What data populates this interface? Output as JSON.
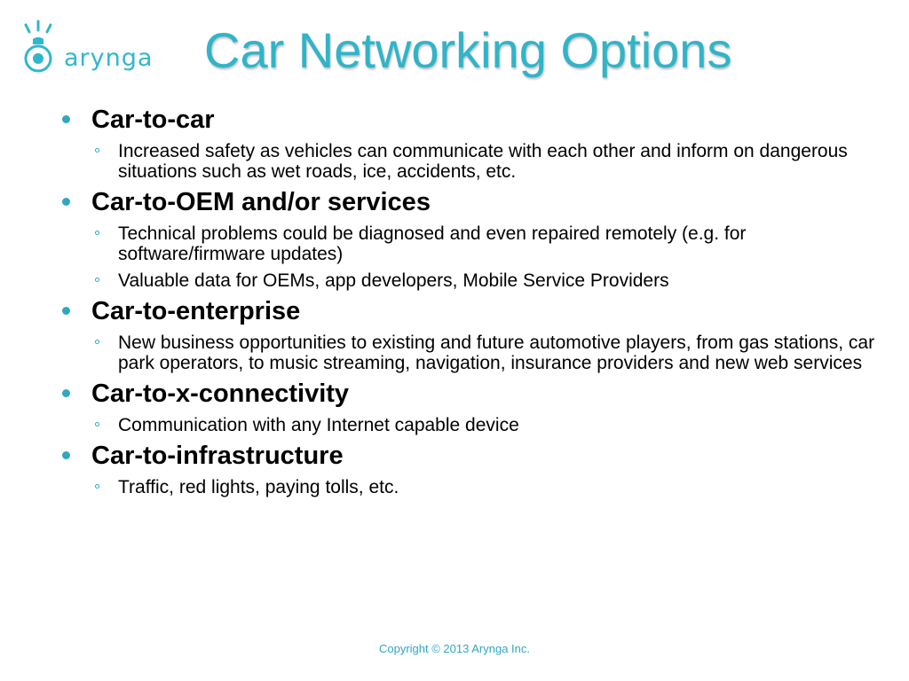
{
  "logo": {
    "text": "arynga",
    "icon": "bulb-rays-icon",
    "color": "#31b7cc"
  },
  "title": "Car Networking Options",
  "colors": {
    "title": "#31b4c8",
    "bullet": "#31a7c1",
    "text": "#000000"
  },
  "sections": [
    {
      "heading": "Car-to-car",
      "items": [
        "Increased safety as vehicles can communicate with each other and inform on dangerous situations such as wet roads, ice, accidents, etc."
      ]
    },
    {
      "heading": "Car-to-OEM and/or services",
      "items": [
        "Technical problems could be diagnosed and even repaired remotely (e.g. for software/firmware updates)",
        "Valuable data for OEMs, app developers, Mobile Service Providers"
      ]
    },
    {
      "heading": "Car-to-enterprise",
      "items": [
        "New business opportunities to existing and future automotive players, from gas stations, car park operators, to music streaming, navigation, insurance providers and new web services"
      ]
    },
    {
      "heading": "Car-to-x-connectivity",
      "items": [
        "Communication with any Internet capable device"
      ]
    },
    {
      "heading": "Car-to-infrastructure",
      "items": [
        "Traffic, red lights, paying tolls, etc."
      ]
    }
  ],
  "footer": {
    "copyright": "Copyright © 2013 Arynga Inc."
  }
}
